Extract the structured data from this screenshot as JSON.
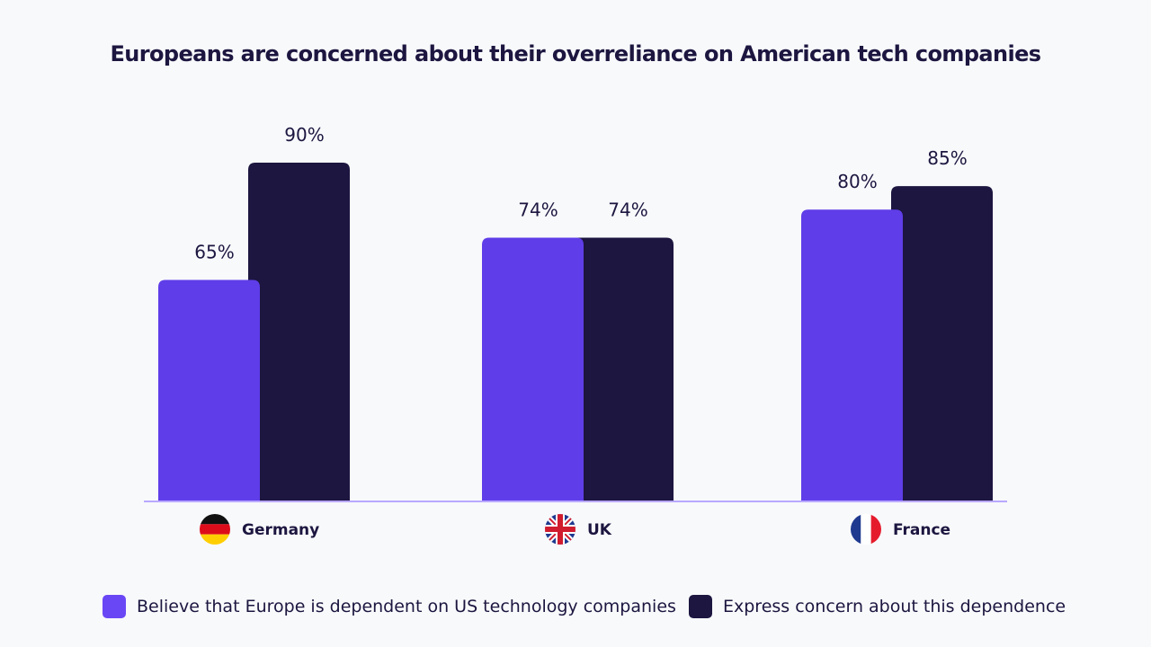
{
  "chart_data": {
    "type": "bar",
    "title": "Europeans are concerned about their overreliance on American tech companies",
    "categories": [
      "Germany",
      "UK",
      "France"
    ],
    "category_icons": [
      "germany-flag-icon",
      "uk-flag-icon",
      "france-flag-icon"
    ],
    "series": [
      {
        "name": "Believe that Europe is dependent on US technology companies",
        "color": "#5f3de8",
        "values": [
          65,
          74,
          80
        ],
        "labels": [
          "65%",
          "74%",
          "80%"
        ]
      },
      {
        "name": "Express concern about this dependence",
        "color": "#1c1640",
        "values": [
          90,
          74,
          85
        ],
        "labels": [
          "90%",
          "74%",
          "85%"
        ]
      }
    ],
    "ylim": [
      18,
      90
    ],
    "grid": false,
    "legend_position": "bottom",
    "axis_color": "#b9a8ff"
  }
}
